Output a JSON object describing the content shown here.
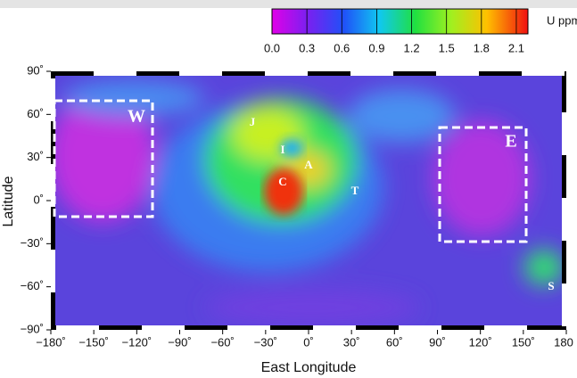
{
  "colorbar": {
    "label": "U ppm",
    "clim": [
      0,
      2.2
    ],
    "ticks": [
      {
        "value": 0,
        "label": "0.0"
      },
      {
        "value": 0.3,
        "label": "0.3"
      },
      {
        "value": 0.6,
        "label": "0.6"
      },
      {
        "value": 0.9,
        "label": "0.9"
      },
      {
        "value": 1.2,
        "label": "1.2"
      },
      {
        "value": 1.5,
        "label": "1.5"
      },
      {
        "value": 1.8,
        "label": "1.8"
      },
      {
        "value": 2.1,
        "label": "2.1"
      }
    ]
  },
  "axes": {
    "xlabel": "East Longitude",
    "ylabel": "Latitude",
    "xlim": [
      -180,
      180
    ],
    "ylim": [
      -90,
      90
    ],
    "xticks": [
      {
        "value": -180,
        "label": "−180˚"
      },
      {
        "value": -150,
        "label": "−150˚"
      },
      {
        "value": -120,
        "label": "−120˚"
      },
      {
        "value": -90,
        "label": "−90˚"
      },
      {
        "value": -60,
        "label": "−60˚"
      },
      {
        "value": -30,
        "label": "−30˚"
      },
      {
        "value": 0,
        "label": "0˚"
      },
      {
        "value": 30,
        "label": "30˚"
      },
      {
        "value": 60,
        "label": "60˚"
      },
      {
        "value": 90,
        "label": "90˚"
      },
      {
        "value": 120,
        "label": "120˚"
      },
      {
        "value": 150,
        "label": "150˚"
      },
      {
        "value": 180,
        "label": "180"
      }
    ],
    "yticks": [
      {
        "value": 90,
        "label": "90˚"
      },
      {
        "value": 60,
        "label": "60˚"
      },
      {
        "value": 30,
        "label": "30˚"
      },
      {
        "value": 0,
        "label": "0˚"
      },
      {
        "value": -30,
        "label": "−30˚"
      },
      {
        "value": -60,
        "label": "−60˚"
      },
      {
        "value": -90,
        "label": "−90˚"
      }
    ]
  },
  "annotations": [
    "J",
    "I",
    "A",
    "C",
    "T",
    "W",
    "E",
    "S"
  ]
}
